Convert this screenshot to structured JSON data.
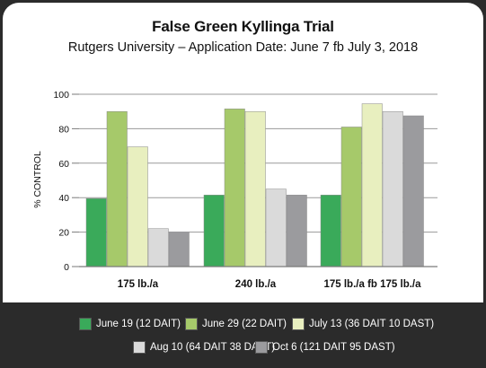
{
  "chart_data": {
    "type": "bar",
    "title": "False Green Kyllinga Trial",
    "subtitle": "Rutgers University – Application Date: June 7 fb July 3, 2018",
    "ylabel": "% CONTROL",
    "xlabel": "",
    "ylim": [
      0,
      100
    ],
    "yticks": [
      0,
      20,
      40,
      60,
      80,
      100
    ],
    "grid": true,
    "legend_position": "bottom",
    "categories": [
      "175 lb./a",
      "240 lb./a",
      "175 lb./a fb 175 lb./a"
    ],
    "series": [
      {
        "name": "June 19 (12 DAIT)",
        "color": "#3aaa5a",
        "values": [
          39.5,
          41.5,
          41.5
        ]
      },
      {
        "name": "June 29 (22 DAIT)",
        "color": "#a6c96a",
        "values": [
          90,
          91.5,
          81
        ]
      },
      {
        "name": "July 13 (36 DAIT 10 DAST)",
        "color": "#e8efbf",
        "values": [
          69.5,
          90,
          94.5
        ]
      },
      {
        "name": "Aug 10 (64 DAIT 38 DAST)",
        "color": "#dadada",
        "values": [
          22,
          45,
          90
        ]
      },
      {
        "name": "Oct 6 (121 DAIT 95 DAST)",
        "color": "#9b9b9e",
        "values": [
          20,
          41.5,
          87.5
        ]
      }
    ]
  },
  "colors": {
    "frame": "#2b2b2b",
    "grid": "#9a9a9a",
    "axis": "#7a7a7a"
  }
}
